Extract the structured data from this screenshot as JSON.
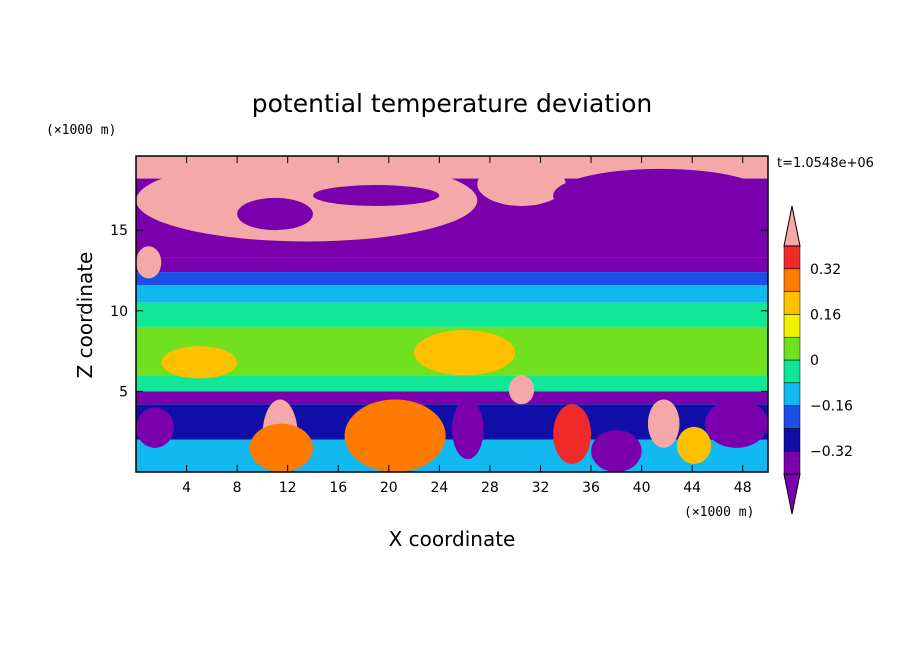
{
  "chart_data": {
    "type": "heatmap",
    "title": "potential temperature deviation",
    "xlabel": "X coordinate",
    "ylabel": "Z coordinate",
    "x_unit": "(×1000 m)",
    "y_unit": "(×1000 m)",
    "time_label": "t=1.0548e+06",
    "xlim": [
      0,
      50
    ],
    "ylim": [
      0,
      19.6
    ],
    "x_ticks": [
      4,
      8,
      12,
      16,
      20,
      24,
      28,
      32,
      36,
      40,
      44,
      48
    ],
    "y_ticks": [
      5,
      10,
      15
    ],
    "colorbar": {
      "levels": [
        -0.4,
        -0.32,
        -0.24,
        -0.16,
        -0.08,
        0,
        0.08,
        0.16,
        0.24,
        0.32,
        0.4
      ],
      "tick_values": [
        -0.32,
        -0.16,
        0,
        0.16,
        0.32
      ],
      "tick_labels": [
        "−0.32",
        "−0.16",
        "0",
        "0.16",
        "0.32"
      ],
      "colors": [
        "#7b00ad",
        "#1010a8",
        "#1c4fe8",
        "#12b8f0",
        "#10e898",
        "#70e020",
        "#f0f000",
        "#ffc000",
        "#ff7a00",
        "#f02a2a"
      ],
      "under_color": "#7b00ad",
      "over_color": "#f5a8a8",
      "extend": "both"
    },
    "bands": [
      {
        "z": [
          18.2,
          19.6
        ],
        "value": 0.5
      },
      {
        "z": [
          13.3,
          18.2
        ],
        "value": -0.5
      },
      {
        "z": [
          12.4,
          13.3
        ],
        "value": -0.35
      },
      {
        "z": [
          11.6,
          12.4
        ],
        "value": -0.2
      },
      {
        "z": [
          10.5,
          11.6
        ],
        "value": -0.12
      },
      {
        "z": [
          9.0,
          10.5
        ],
        "value": -0.05
      },
      {
        "z": [
          6.0,
          9.0
        ],
        "value": 0.04
      },
      {
        "z": [
          5.0,
          6.0
        ],
        "value": -0.05
      },
      {
        "z": [
          4.2,
          5.0
        ],
        "value": -0.45
      },
      {
        "z": [
          2.0,
          4.2
        ],
        "value": -0.25
      },
      {
        "z": [
          0,
          2.0
        ],
        "value": -0.1
      }
    ],
    "regions": [
      {
        "x": [
          0,
          27
        ],
        "z": [
          14.3,
          19.4
        ],
        "value": 0.5
      },
      {
        "x": [
          27,
          34
        ],
        "z": [
          16.5,
          19.2
        ],
        "value": 0.5
      },
      {
        "x": [
          33,
          50
        ],
        "z": [
          15.5,
          18.8
        ],
        "value": -0.5
      },
      {
        "x": [
          8,
          14
        ],
        "z": [
          15.0,
          17.0
        ],
        "value": -0.5
      },
      {
        "x": [
          14,
          24
        ],
        "z": [
          16.5,
          17.8
        ],
        "value": -0.5
      },
      {
        "x": [
          0,
          2
        ],
        "z": [
          12.0,
          14.0
        ],
        "value": 0.5
      },
      {
        "x": [
          2,
          8
        ],
        "z": [
          5.8,
          7.8
        ],
        "value": 0.2
      },
      {
        "x": [
          22,
          30
        ],
        "z": [
          6.0,
          8.8
        ],
        "value": 0.2
      },
      {
        "x": [
          29.5,
          31.5
        ],
        "z": [
          4.2,
          6.0
        ],
        "value": 0.5
      },
      {
        "x": [
          10,
          12.8
        ],
        "z": [
          0,
          4.5
        ],
        "value": 0.5
      },
      {
        "x": [
          18,
          23
        ],
        "z": [
          0.8,
          3.8
        ],
        "value": 0.5
      },
      {
        "x": [
          16.5,
          24.5
        ],
        "z": [
          0,
          4.5
        ],
        "value": 0.3
      },
      {
        "x": [
          9,
          14
        ],
        "z": [
          0,
          3.0
        ],
        "value": 0.25
      },
      {
        "x": [
          25,
          27.5
        ],
        "z": [
          0.8,
          4.5
        ],
        "value": -0.5
      },
      {
        "x": [
          42.8,
          45.5
        ],
        "z": [
          0.5,
          2.8
        ],
        "value": 0.2
      },
      {
        "x": [
          40.5,
          43
        ],
        "z": [
          1.5,
          4.5
        ],
        "value": 0.5
      },
      {
        "x": [
          33,
          36
        ],
        "z": [
          0.5,
          4.2
        ],
        "value": 0.35
      },
      {
        "x": [
          36,
          40
        ],
        "z": [
          0,
          2.6
        ],
        "value": -0.4
      },
      {
        "x": [
          45,
          50
        ],
        "z": [
          1.5,
          4.5
        ],
        "value": -0.45
      },
      {
        "x": [
          0,
          3
        ],
        "z": [
          1.5,
          4.0
        ],
        "value": -0.35
      }
    ]
  }
}
